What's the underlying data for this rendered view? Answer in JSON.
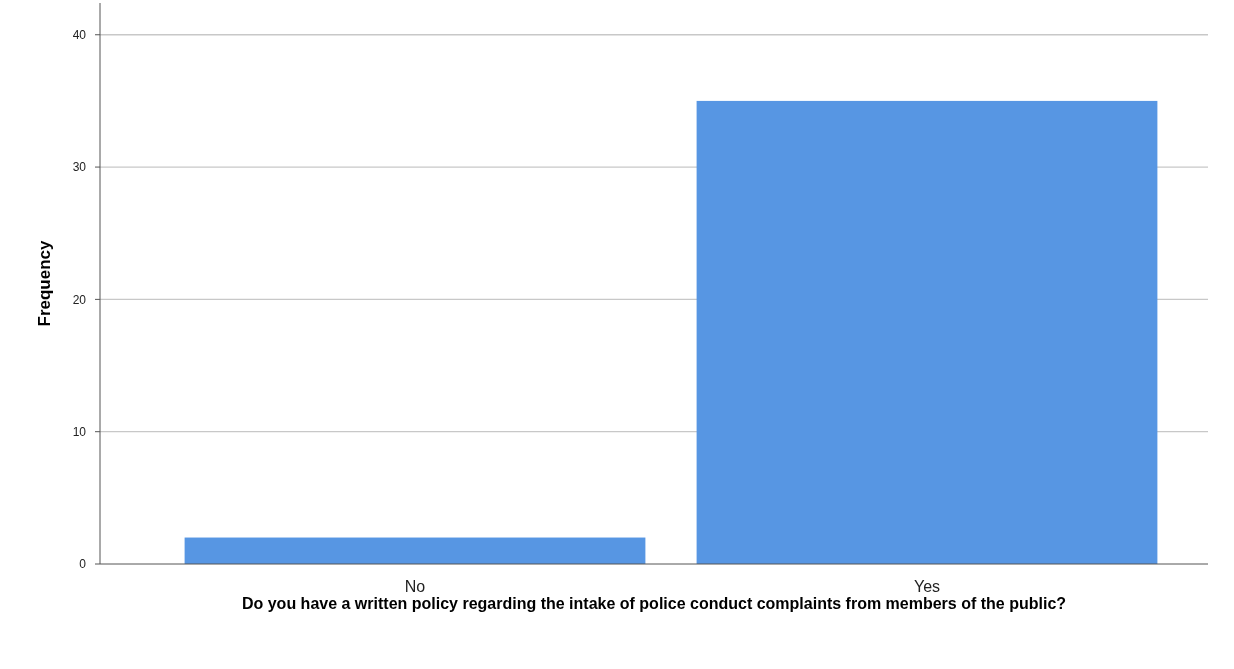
{
  "chart_data": {
    "type": "bar",
    "xlabel": "Do you have a written policy regarding the intake of police conduct complaints from members of the public?",
    "ylabel": "Frequency",
    "categories": [
      "No",
      "Yes"
    ],
    "values": [
      2,
      35
    ],
    "color": "#5796e3",
    "ylim": [
      0,
      42.4
    ],
    "yticks": [
      0,
      10,
      20,
      30,
      40
    ],
    "grid": "y"
  }
}
